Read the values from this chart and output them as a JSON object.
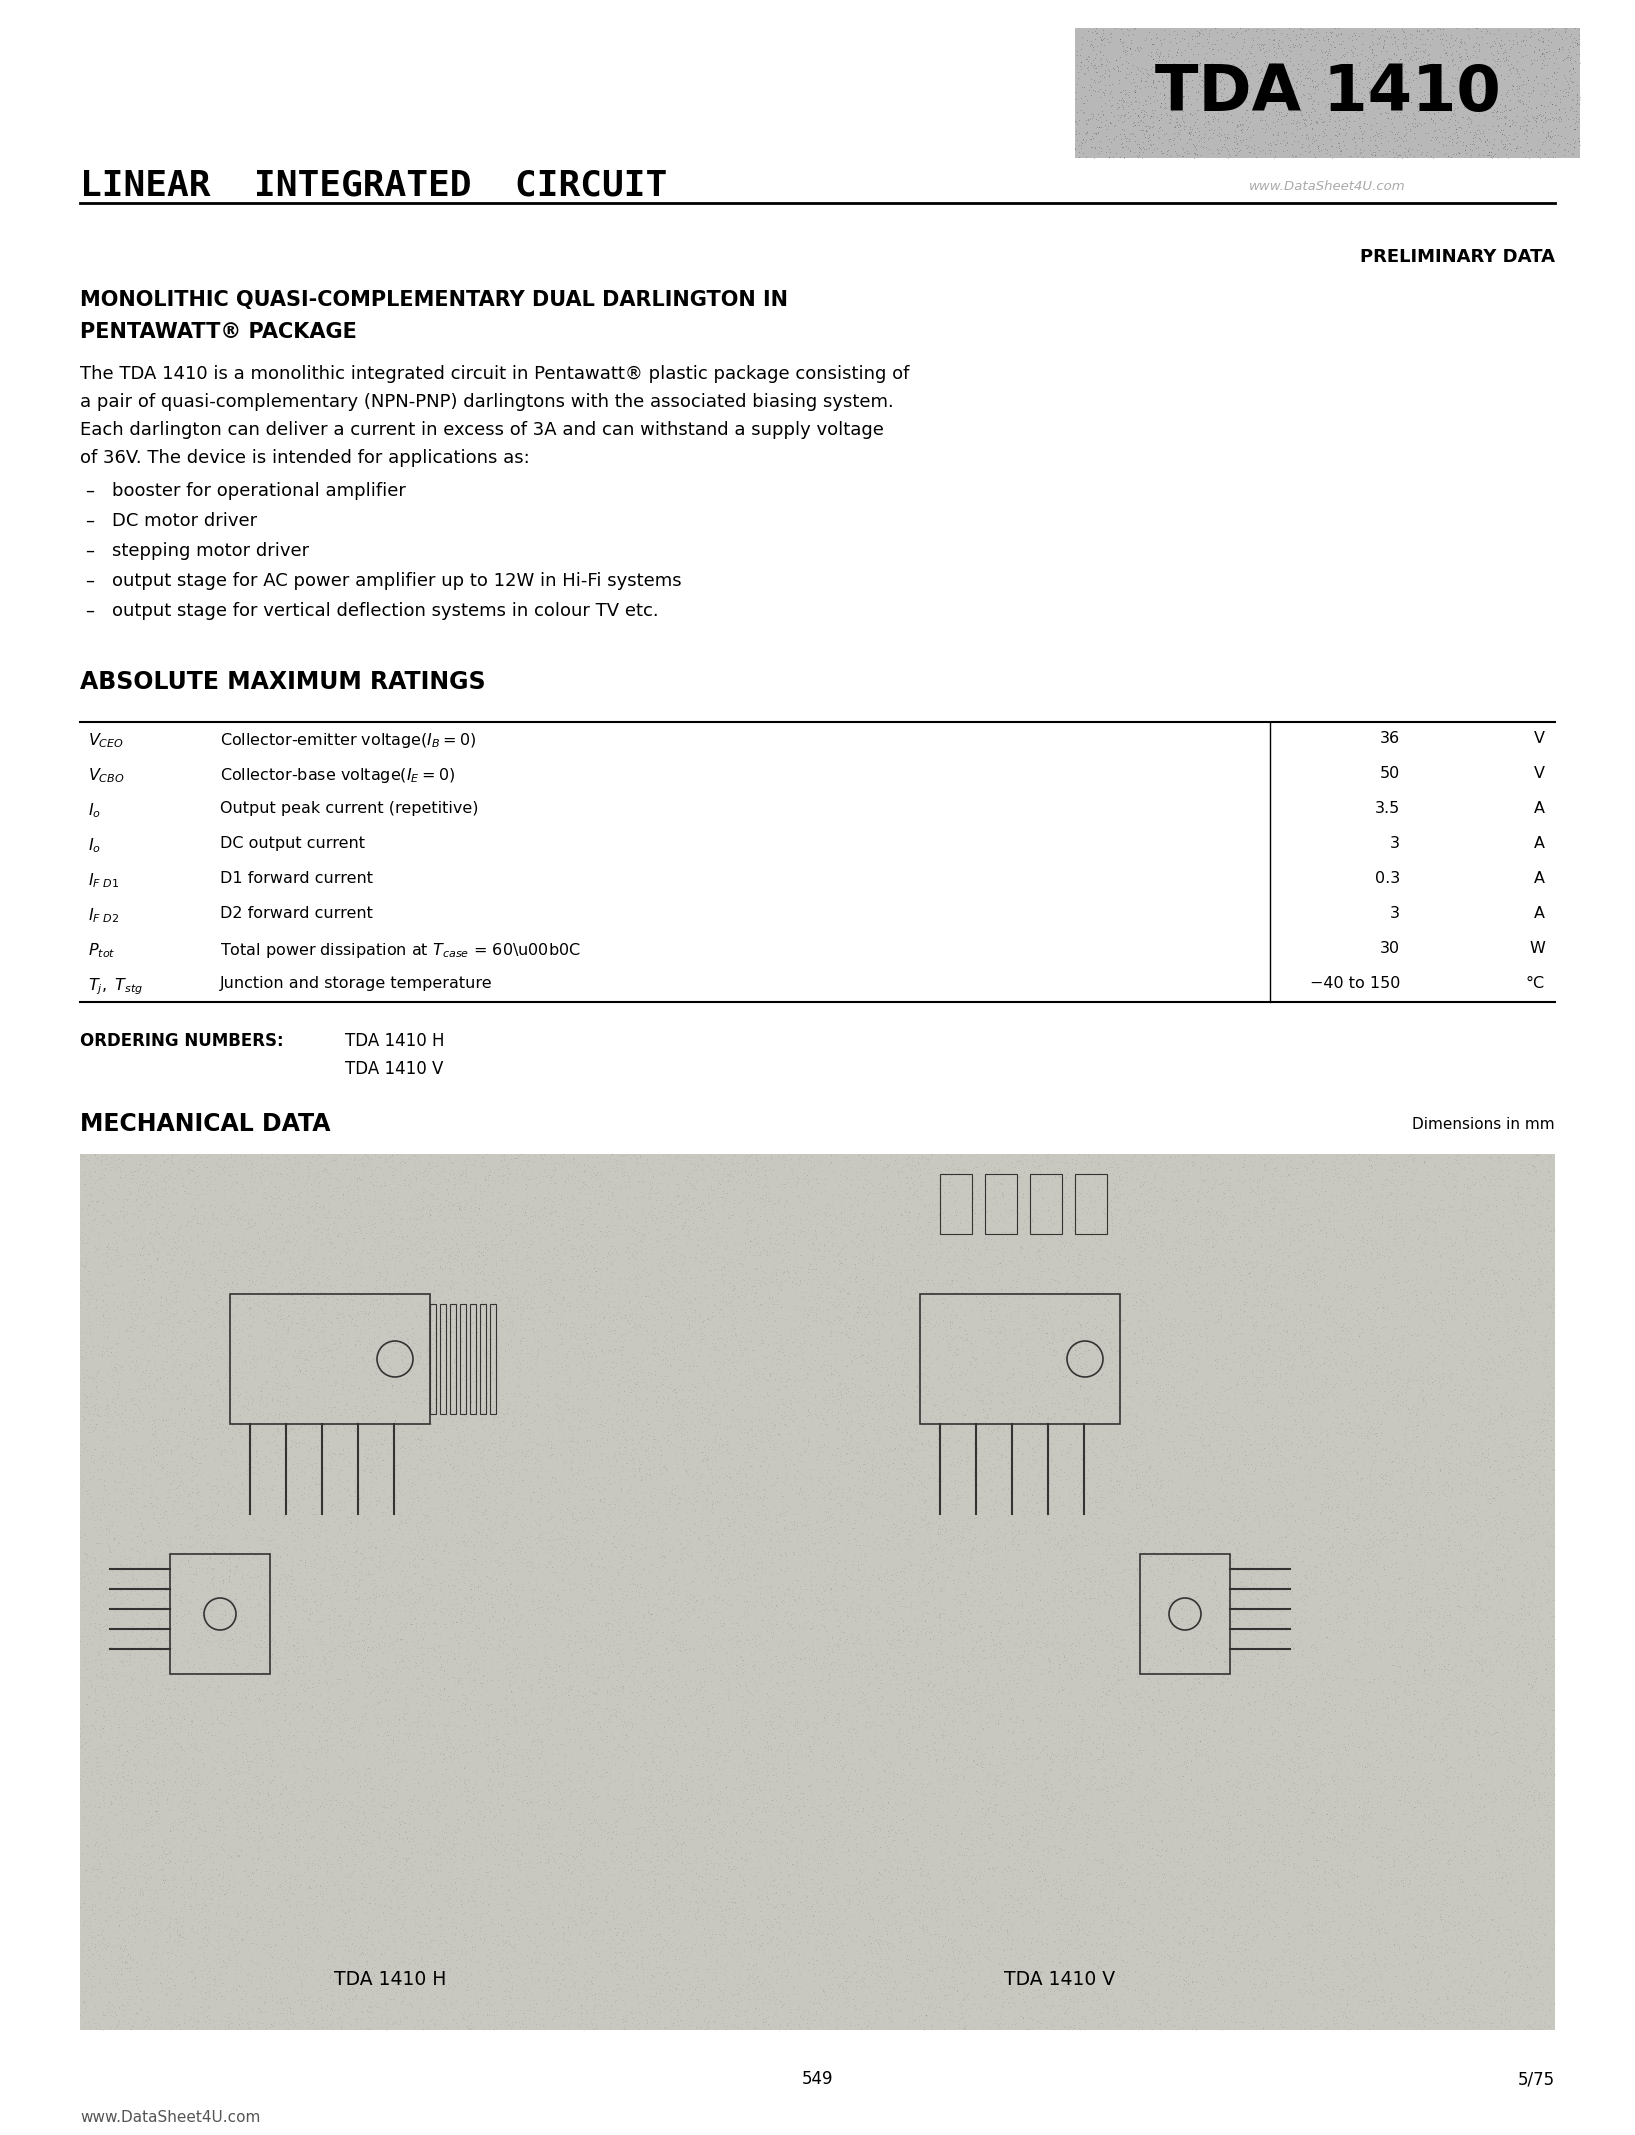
{
  "page_bg": "#ffffff",
  "title_model": "TDA 1410",
  "header_line1": "LINEAR  INTEGRATED  CIRCUIT",
  "watermark": "www.DataSheet4U.com",
  "preliminary": "PRELIMINARY DATA",
  "section1_title_line1": "MONOLITHIC QUASI-COMPLEMENTARY DUAL DARLINGTON IN",
  "section1_title_line2": "PENTAWATT® PACKAGE",
  "intro_text_lines": [
    "The TDA 1410 is a monolithic integrated circuit in Pentawatt® plastic package consisting of",
    "a pair of quasi-complementary (NPN-PNP) darlingtons with the associated biasing system.",
    "Each darlington can deliver a current in excess of 3A and can withstand a supply voltage",
    "of 36V. The device is intended for applications as:"
  ],
  "bullet_points": [
    "booster for operational amplifier",
    "DC motor driver",
    "stepping motor driver",
    "output stage for AC power amplifier up to 12W in Hi-Fi systems",
    "output stage for vertical deflection systems in colour TV etc."
  ],
  "section2_title": "ABSOLUTE MAXIMUM RATINGS",
  "ordering_title": "ORDERING NUMBERS:",
  "ordering_items": [
    "TDA 1410 H",
    "TDA 1410 V"
  ],
  "section3_title": "MECHANICAL DATA",
  "dimensions_note": "Dimensions in mm",
  "bottom_label_left": "TDA 1410 H",
  "bottom_label_right": "TDA 1410 V",
  "page_number": "549",
  "date": "5/75",
  "footer": "www.DataSheet4U.com",
  "diag_bg": "#c8c8c0",
  "title_box_bg": "#b8b8b8"
}
